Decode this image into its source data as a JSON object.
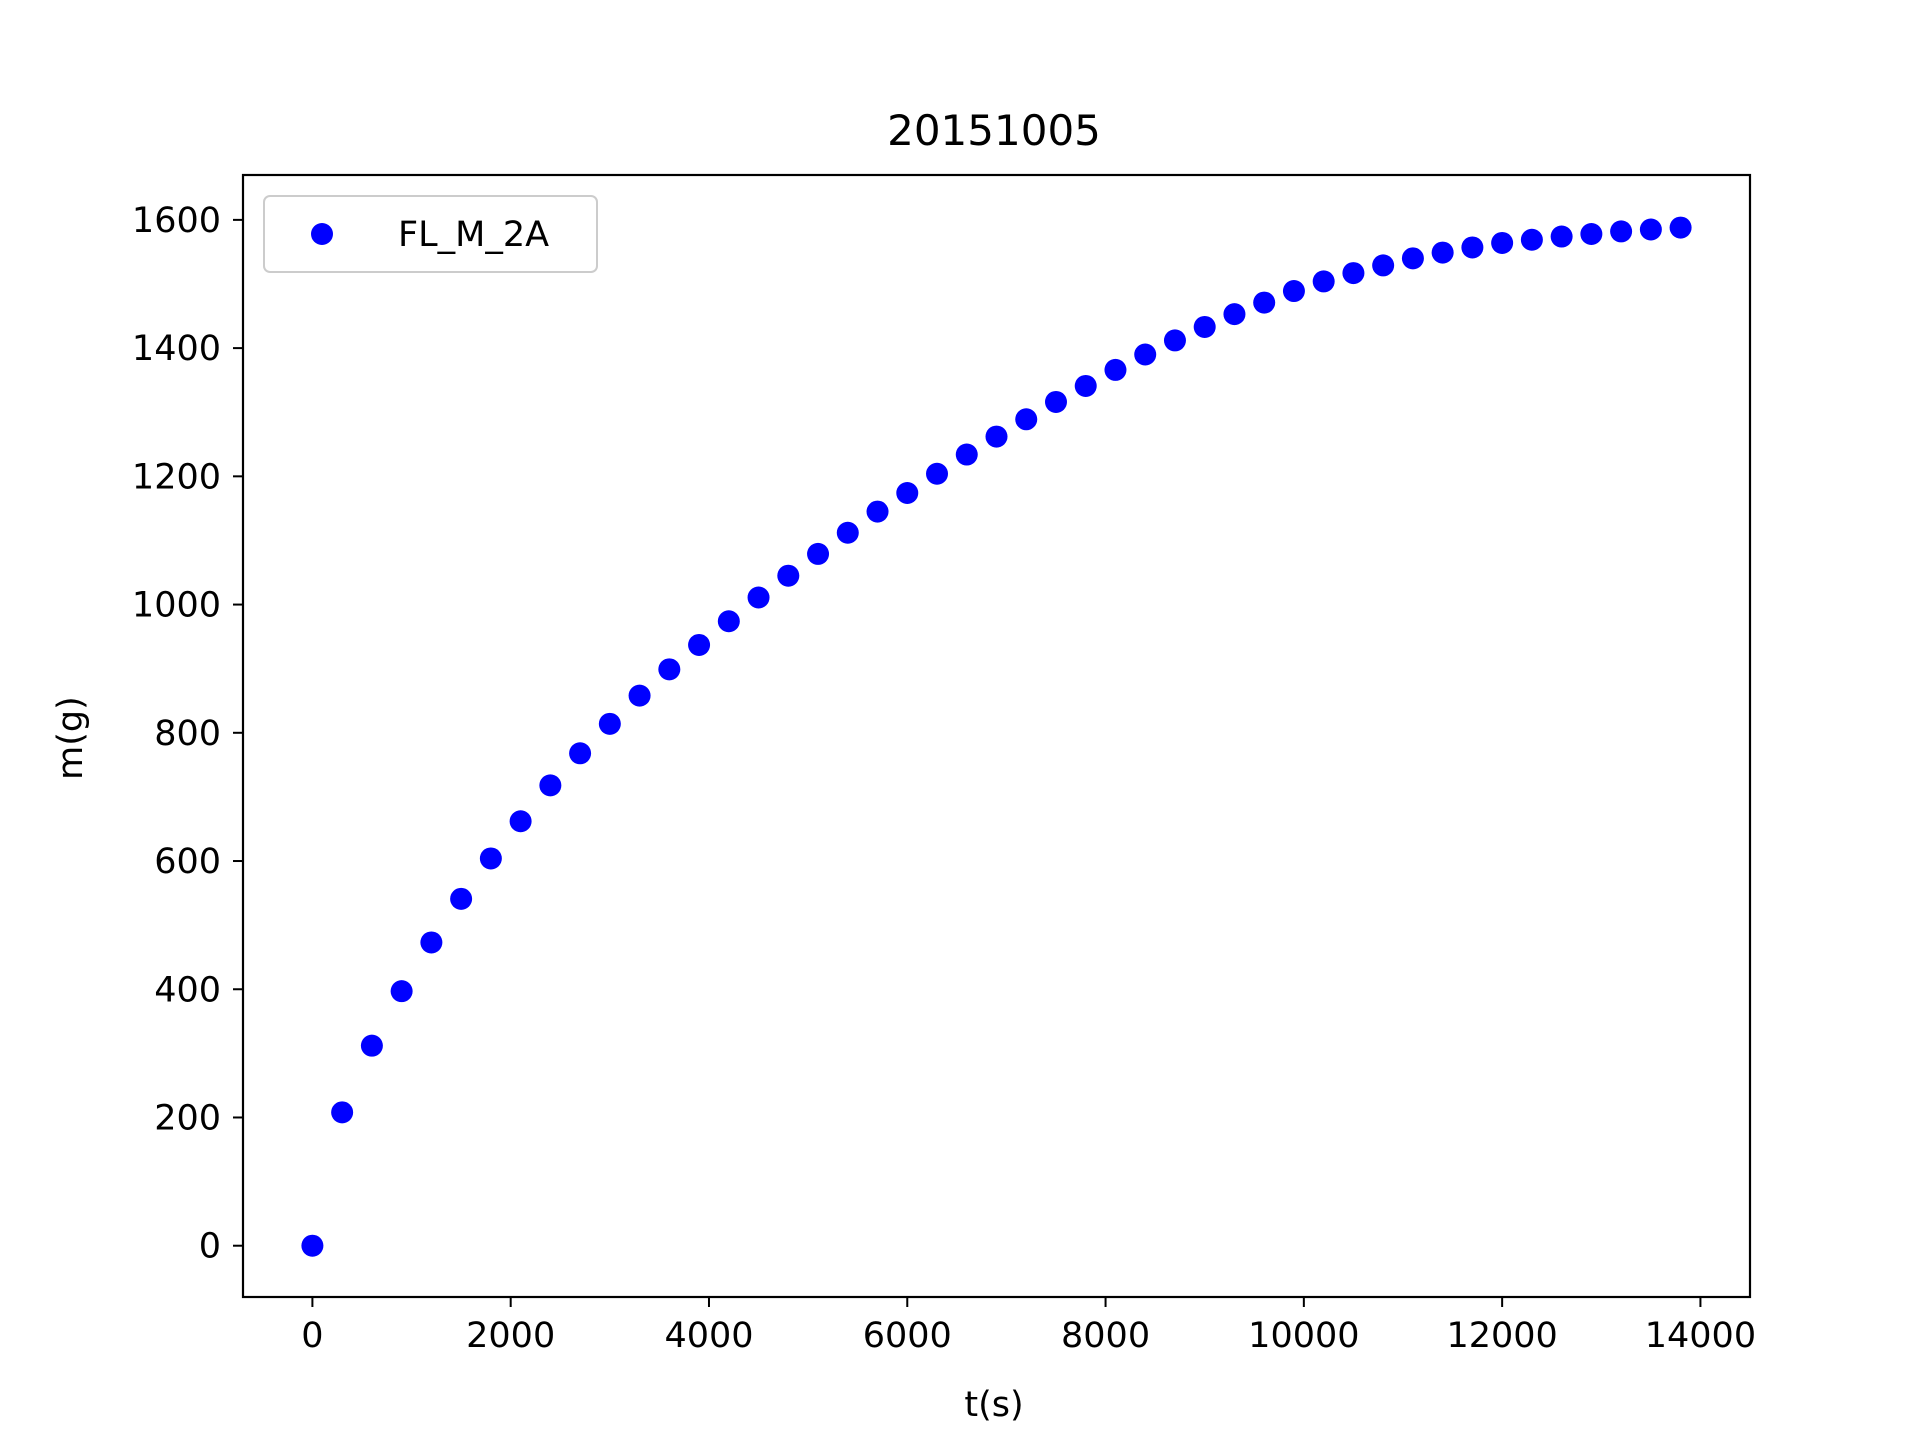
{
  "chart_data": {
    "type": "scatter",
    "title": "20151005",
    "xlabel": "t(s)",
    "ylabel": "m(g)",
    "xlim": [
      -700,
      14500
    ],
    "ylim": [
      -80,
      1670
    ],
    "xticks": [
      0,
      2000,
      4000,
      6000,
      8000,
      10000,
      12000,
      14000
    ],
    "yticks": [
      0,
      200,
      400,
      600,
      800,
      1000,
      1200,
      1400,
      1600
    ],
    "grid": false,
    "legend_position": "top-left",
    "series": [
      {
        "name": "FL_M_2A",
        "color": "#0000ff",
        "marker": "circle",
        "x": [
          0,
          300,
          600,
          900,
          1200,
          1500,
          1800,
          2100,
          2400,
          2700,
          3000,
          3300,
          3600,
          3900,
          4200,
          4500,
          4800,
          5100,
          5400,
          5700,
          6000,
          6300,
          6600,
          6900,
          7200,
          7500,
          7800,
          8100,
          8400,
          8700,
          9000,
          9300,
          9600,
          9900,
          10200,
          10500,
          10800,
          11100,
          11400,
          11700,
          12000,
          12300,
          12600,
          12900,
          13200,
          13500,
          13800
        ],
        "y": [
          0,
          208,
          312,
          397,
          473,
          541,
          604,
          662,
          718,
          768,
          814,
          858,
          899,
          937,
          974,
          1011,
          1045,
          1079,
          1112,
          1145,
          1174,
          1204,
          1234,
          1262,
          1289,
          1316,
          1341,
          1366,
          1390,
          1412,
          1433,
          1453,
          1471,
          1489,
          1504,
          1517,
          1529,
          1540,
          1549,
          1557,
          1564,
          1569,
          1574,
          1578,
          1582,
          1585,
          1588
        ]
      }
    ]
  }
}
